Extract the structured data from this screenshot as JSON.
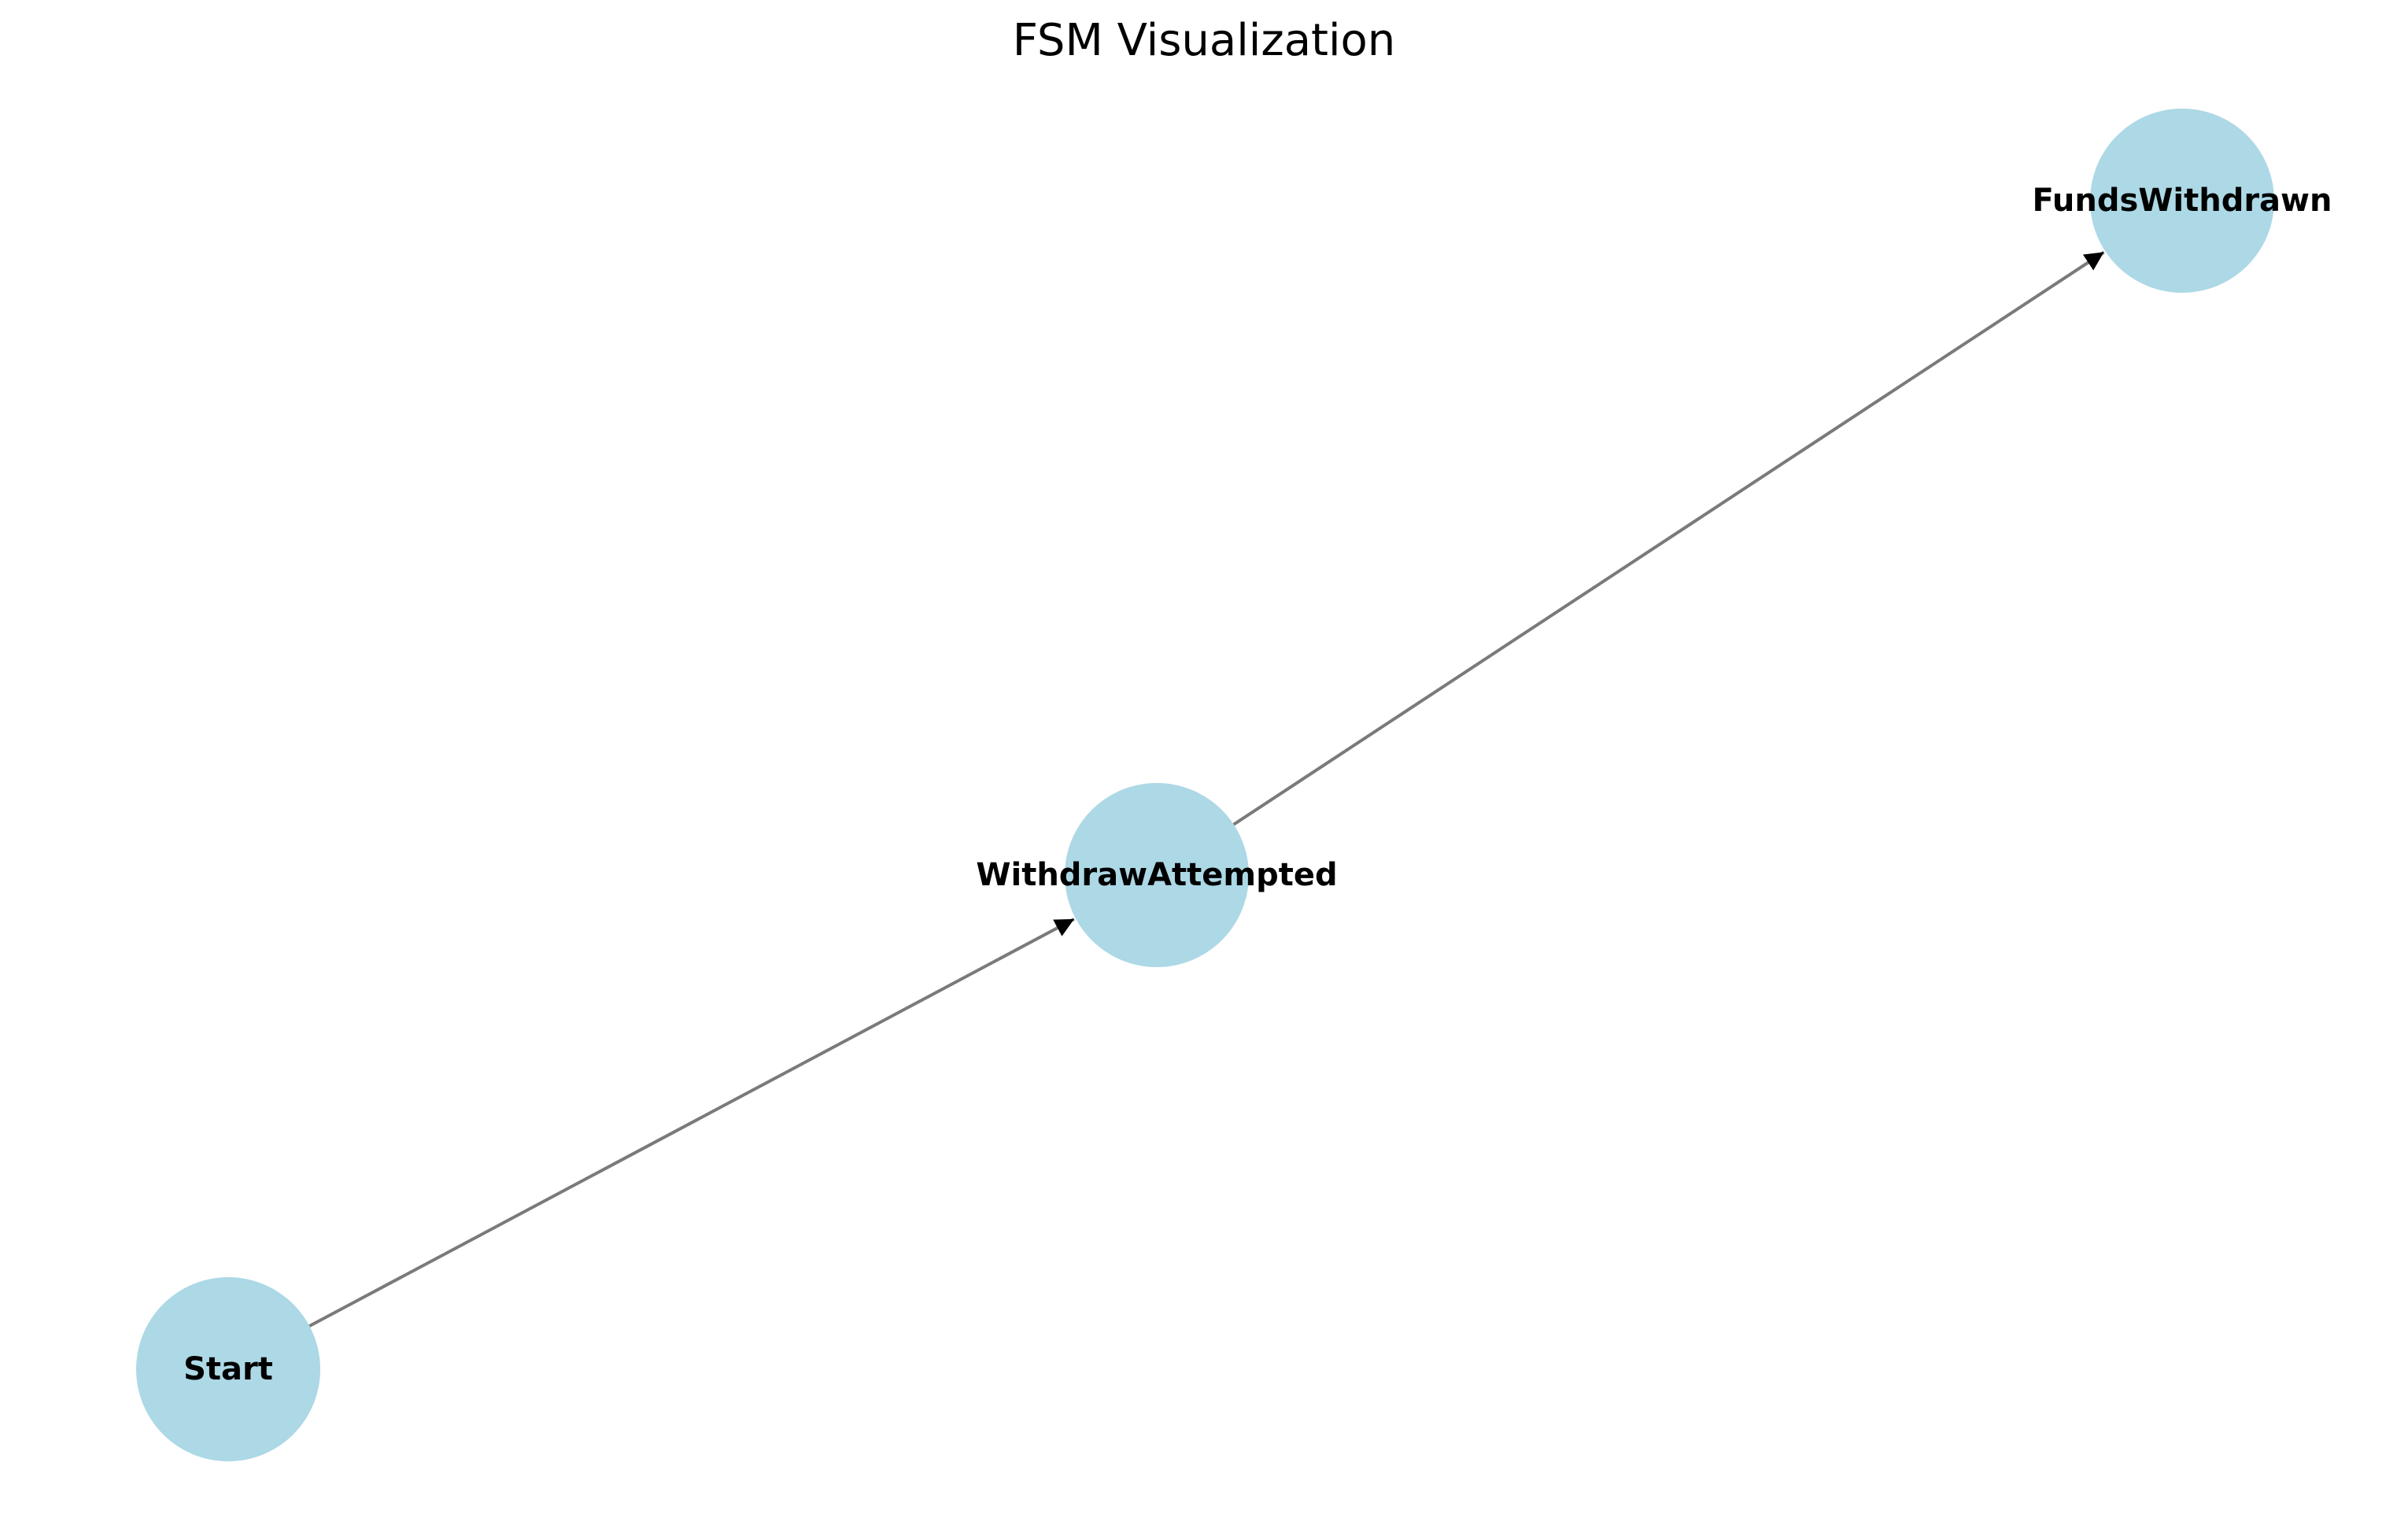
{
  "title": "FSM Visualization",
  "colors": {
    "node_fill": "#add8e6",
    "edge_line": "#7a7a7a",
    "arrow_head": "#000000",
    "label_text": "#000000",
    "background": "#ffffff"
  },
  "nodes": [
    {
      "id": "start",
      "label": "Start"
    },
    {
      "id": "withdraw-attempted",
      "label": "WithdrawAttempted"
    },
    {
      "id": "funds-withdrawn",
      "label": "FundsWithdrawn"
    }
  ],
  "edges": [
    {
      "from": "start",
      "to": "withdraw-attempted"
    },
    {
      "from": "withdraw-attempted",
      "to": "funds-withdrawn"
    }
  ]
}
